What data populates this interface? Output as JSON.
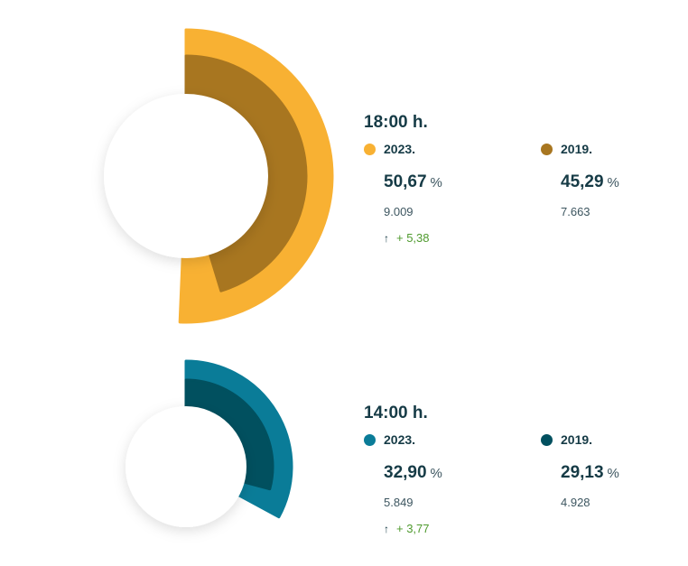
{
  "chart_data": [
    {
      "type": "radial-bar",
      "label": "18:00 h.",
      "series": [
        {
          "name": "2023.",
          "value": 50.67,
          "count": "9.009",
          "color": "#f8b133"
        },
        {
          "name": "2019.",
          "value": 45.29,
          "count": "7.663",
          "color": "#a87620"
        }
      ],
      "change": "+ 5,38",
      "display_values": {
        "a": "50,67",
        "b": "45,29"
      },
      "unit": "%"
    },
    {
      "type": "radial-bar",
      "label": "14:00 h.",
      "series": [
        {
          "name": "2023.",
          "value": 32.9,
          "count": "5.849",
          "color": "#0a7c98"
        },
        {
          "name": "2019.",
          "value": 29.13,
          "count": "4.928",
          "color": "#01505f"
        }
      ],
      "change": "+ 3,77",
      "display_values": {
        "a": "32,90",
        "b": "29,13"
      },
      "unit": "%"
    }
  ],
  "icons": {
    "change": "arrow-up-icon"
  }
}
